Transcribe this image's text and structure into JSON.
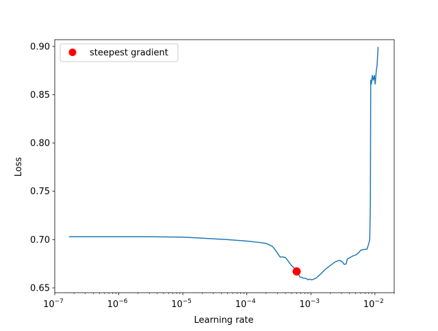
{
  "chart_data": {
    "type": "line",
    "title": "",
    "xlabel": "Learning rate",
    "ylabel": "Loss",
    "xscale": "log",
    "xlim": [
      1e-07,
      0.02
    ],
    "ylim": [
      0.645,
      0.907
    ],
    "grid": false,
    "legend_position": "top-left",
    "x_ticks": [
      {
        "value": 1e-07,
        "base": "10",
        "exp": "−7"
      },
      {
        "value": 1e-06,
        "base": "10",
        "exp": "−6"
      },
      {
        "value": 1e-05,
        "base": "10",
        "exp": "−5"
      },
      {
        "value": 0.0001,
        "base": "10",
        "exp": "−4"
      },
      {
        "value": 0.001,
        "base": "10",
        "exp": "−3"
      },
      {
        "value": 0.01,
        "base": "10",
        "exp": "−2"
      }
    ],
    "y_ticks": [
      {
        "value": 0.65,
        "label": "0.65"
      },
      {
        "value": 0.7,
        "label": "0.70"
      },
      {
        "value": 0.75,
        "label": "0.75"
      },
      {
        "value": 0.8,
        "label": "0.80"
      },
      {
        "value": 0.85,
        "label": "0.85"
      },
      {
        "value": 0.9,
        "label": "0.90"
      }
    ],
    "series": [
      {
        "name": "",
        "color": "#1f77b4",
        "x": [
          1.7e-07,
          3e-07,
          1e-06,
          3e-06,
          1e-05,
          2e-05,
          5e-05,
          0.0001,
          0.00016,
          0.0002,
          0.00025,
          0.00028,
          0.0003,
          0.00033,
          0.00036,
          0.0004,
          0.00045,
          0.0005,
          0.00055,
          0.0006,
          0.00064,
          0.00068,
          0.00072,
          0.00076,
          0.0008,
          0.00085,
          0.0009,
          0.00095,
          0.001,
          0.00105,
          0.0011,
          0.0012,
          0.0014,
          0.0017,
          0.002,
          0.0024,
          0.0028,
          0.0031,
          0.0033,
          0.0035,
          0.0036,
          0.0037,
          0.004,
          0.0045,
          0.005,
          0.0055,
          0.006,
          0.0065,
          0.007,
          0.0075,
          0.008,
          0.0083,
          0.0085,
          0.0086,
          0.0088,
          0.0091,
          0.0094,
          0.0098,
          0.0101,
          0.0105,
          0.0108,
          0.0112
        ],
        "y": [
          0.703,
          0.703,
          0.703,
          0.703,
          0.7025,
          0.7015,
          0.7,
          0.6985,
          0.697,
          0.696,
          0.693,
          0.689,
          0.686,
          0.682,
          0.682,
          0.6815,
          0.677,
          0.673,
          0.6705,
          0.667,
          0.664,
          0.661,
          0.661,
          0.66,
          0.66,
          0.6595,
          0.6585,
          0.659,
          0.6585,
          0.6585,
          0.659,
          0.66,
          0.664,
          0.6695,
          0.673,
          0.677,
          0.6785,
          0.677,
          0.6745,
          0.6745,
          0.676,
          0.68,
          0.681,
          0.683,
          0.684,
          0.686,
          0.689,
          0.6895,
          0.69,
          0.69,
          0.6955,
          0.7,
          0.74,
          0.865,
          0.861,
          0.87,
          0.865,
          0.87,
          0.861,
          0.875,
          0.88,
          0.899
        ]
      }
    ],
    "markers": [
      {
        "name": "steepest gradient",
        "x": 0.0006,
        "y": 0.667,
        "color": "#ff0000"
      }
    ],
    "legend": [
      {
        "label": "steepest gradient",
        "color": "#ff0000"
      }
    ]
  }
}
